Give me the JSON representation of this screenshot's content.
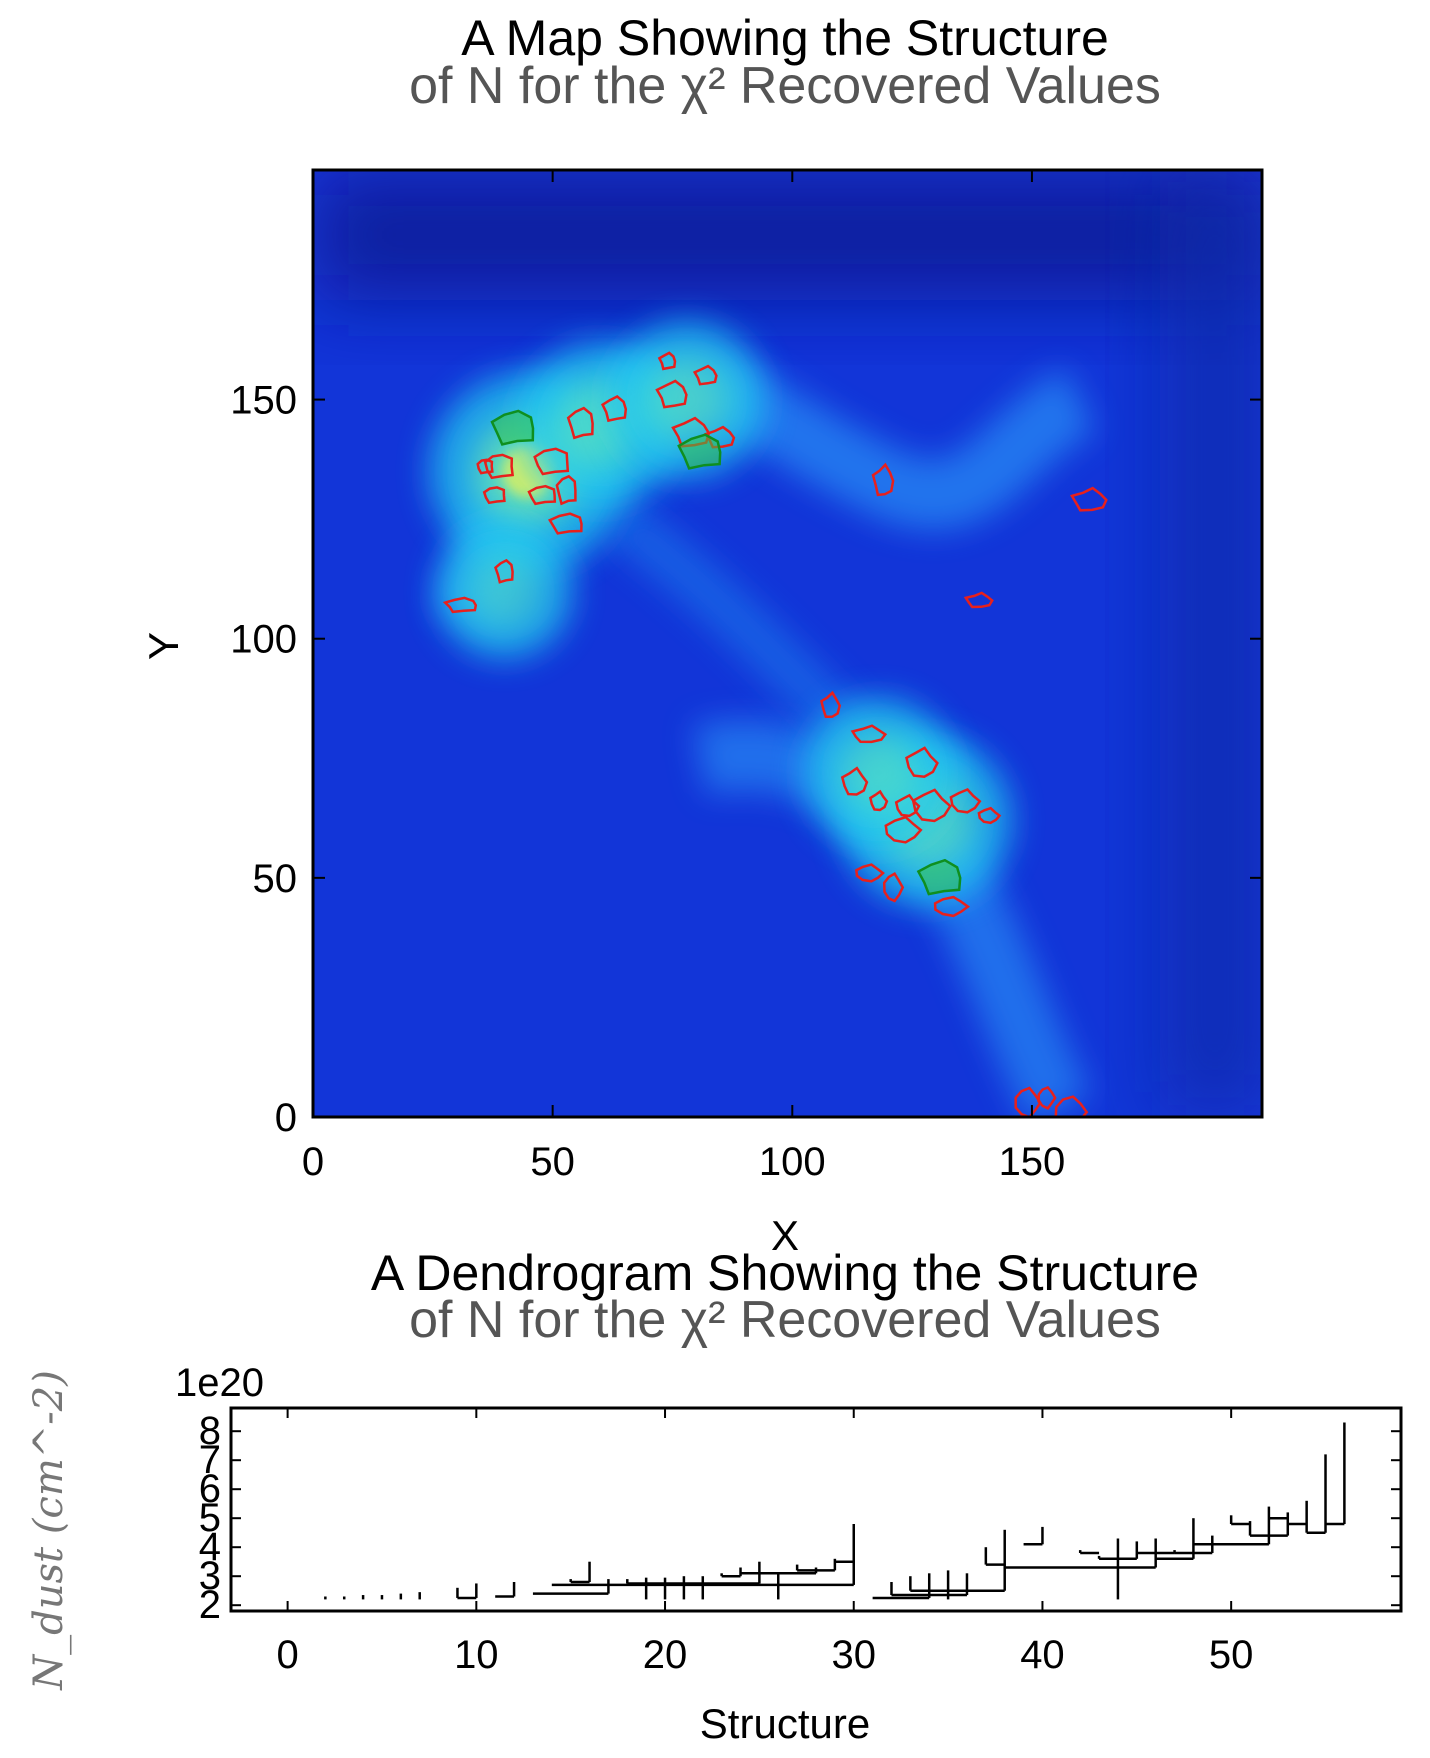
{
  "chart_data": [
    {
      "type": "heatmap",
      "title": "A Map Showing the Structure",
      "subtitle": "of N for the χ² Recovered Values",
      "xlabel": "X",
      "ylabel": "Y",
      "xlim": [
        0,
        198
      ],
      "ylim": [
        0,
        198
      ],
      "xticks": [
        "0",
        "50",
        "100",
        "150"
      ],
      "yticks": [
        "0",
        "50",
        "100",
        "150"
      ],
      "colormap": "jet",
      "contour_colors": {
        "leaf": "#e8201c",
        "branch": "#0f8f1f"
      },
      "bright_regions": [
        {
          "x": 45,
          "y": 135,
          "level": 0.85
        },
        {
          "x": 60,
          "y": 145,
          "level": 0.6
        },
        {
          "x": 78,
          "y": 150,
          "level": 0.55
        },
        {
          "x": 128,
          "y": 62,
          "level": 0.65
        },
        {
          "x": 118,
          "y": 72,
          "level": 0.5
        },
        {
          "x": 40,
          "y": 110,
          "level": 0.4
        }
      ],
      "red_contours": [
        {
          "x": 36,
          "y": 136
        },
        {
          "x": 39,
          "y": 136
        },
        {
          "x": 38,
          "y": 130
        },
        {
          "x": 50,
          "y": 137
        },
        {
          "x": 48,
          "y": 130
        },
        {
          "x": 53,
          "y": 131
        },
        {
          "x": 53,
          "y": 124
        },
        {
          "x": 56,
          "y": 145
        },
        {
          "x": 40,
          "y": 114
        },
        {
          "x": 31,
          "y": 107
        },
        {
          "x": 63,
          "y": 148
        },
        {
          "x": 74,
          "y": 158
        },
        {
          "x": 75,
          "y": 151
        },
        {
          "x": 82,
          "y": 155
        },
        {
          "x": 79,
          "y": 143
        },
        {
          "x": 85,
          "y": 142
        },
        {
          "x": 119,
          "y": 133
        },
        {
          "x": 162,
          "y": 129
        },
        {
          "x": 139,
          "y": 108
        },
        {
          "x": 108,
          "y": 86
        },
        {
          "x": 116,
          "y": 80
        },
        {
          "x": 113,
          "y": 70
        },
        {
          "x": 118,
          "y": 66
        },
        {
          "x": 127,
          "y": 74
        },
        {
          "x": 124,
          "y": 65
        },
        {
          "x": 129,
          "y": 65
        },
        {
          "x": 136,
          "y": 66
        },
        {
          "x": 141,
          "y": 63
        },
        {
          "x": 123,
          "y": 60
        },
        {
          "x": 116,
          "y": 51
        },
        {
          "x": 121,
          "y": 48
        },
        {
          "x": 133,
          "y": 44
        },
        {
          "x": 149,
          "y": 3
        },
        {
          "x": 153,
          "y": 4
        },
        {
          "x": 158,
          "y": 1
        }
      ],
      "green_contours": [
        {
          "x": 42,
          "y": 144
        },
        {
          "x": 81,
          "y": 139
        },
        {
          "x": 131,
          "y": 50
        }
      ]
    },
    {
      "type": "line",
      "subtype": "dendrogram",
      "title": "A Dendrogram Showing the Structure",
      "subtitle": "of N for the χ² Recovered Values",
      "xlabel": "Structure",
      "ylabel": "N_dust (cm^-2)",
      "scale_label": "1e20",
      "xlim": [
        -3,
        59
      ],
      "ylim": [
        1.8,
        8.8
      ],
      "xticks": [
        "0",
        "10",
        "20",
        "30",
        "40",
        "50"
      ],
      "yticks": [
        "2",
        "3",
        "4",
        "5",
        "6",
        "7",
        "8"
      ],
      "leaves": [
        {
          "x": 2,
          "peak": 2.3
        },
        {
          "x": 3,
          "peak": 2.3
        },
        {
          "x": 4,
          "peak": 2.35
        },
        {
          "x": 5,
          "peak": 2.35
        },
        {
          "x": 6,
          "peak": 2.4
        },
        {
          "x": 7,
          "peak": 2.45
        },
        {
          "x": 9,
          "peak": 2.6
        },
        {
          "x": 10,
          "peak": 2.75
        },
        {
          "x": 11,
          "peak": 2.3
        },
        {
          "x": 12,
          "peak": 2.8
        },
        {
          "x": 15,
          "peak": 2.9
        },
        {
          "x": 16,
          "peak": 3.5
        },
        {
          "x": 17,
          "peak": 2.9
        },
        {
          "x": 18,
          "peak": 2.9
        },
        {
          "x": 19,
          "peak": 2.95
        },
        {
          "x": 20,
          "peak": 2.95
        },
        {
          "x": 21,
          "peak": 3.0
        },
        {
          "x": 22,
          "peak": 3.0
        },
        {
          "x": 23,
          "peak": 3.1
        },
        {
          "x": 24,
          "peak": 3.3
        },
        {
          "x": 25,
          "peak": 3.5
        },
        {
          "x": 26,
          "peak": 3.1
        },
        {
          "x": 27,
          "peak": 3.4
        },
        {
          "x": 28,
          "peak": 3.3
        },
        {
          "x": 29,
          "peak": 3.6
        },
        {
          "x": 30,
          "peak": 4.8
        },
        {
          "x": 32,
          "peak": 2.8
        },
        {
          "x": 33,
          "peak": 3.0
        },
        {
          "x": 34,
          "peak": 3.1
        },
        {
          "x": 35,
          "peak": 3.2
        },
        {
          "x": 36,
          "peak": 3.1
        },
        {
          "x": 37,
          "peak": 4.0
        },
        {
          "x": 38,
          "peak": 4.6
        },
        {
          "x": 39,
          "peak": 4.1
        },
        {
          "x": 40,
          "peak": 4.7
        },
        {
          "x": 42,
          "peak": 3.9
        },
        {
          "x": 43,
          "peak": 3.7
        },
        {
          "x": 44,
          "peak": 4.3
        },
        {
          "x": 45,
          "peak": 4.2
        },
        {
          "x": 46,
          "peak": 4.3
        },
        {
          "x": 47,
          "peak": 3.9
        },
        {
          "x": 48,
          "peak": 5.0
        },
        {
          "x": 49,
          "peak": 4.4
        },
        {
          "x": 50,
          "peak": 5.1
        },
        {
          "x": 51,
          "peak": 4.9
        },
        {
          "x": 52,
          "peak": 5.4
        },
        {
          "x": 53,
          "peak": 5.2
        },
        {
          "x": 54,
          "peak": 5.6
        },
        {
          "x": 55,
          "peak": 7.2
        },
        {
          "x": 56,
          "peak": 8.3
        }
      ],
      "merges": [
        {
          "x1": 9,
          "x2": 10,
          "y": 2.25
        },
        {
          "x1": 11,
          "x2": 12,
          "y": 2.3
        },
        {
          "x1": 13,
          "x2": 17,
          "y": 2.4
        },
        {
          "x1": 15,
          "x2": 16,
          "y": 2.8
        },
        {
          "x1": 14,
          "x2": 30,
          "y": 2.7
        },
        {
          "x1": 18,
          "x2": 25,
          "y": 2.75
        },
        {
          "x1": 23,
          "x2": 24,
          "y": 3.0
        },
        {
          "x1": 24,
          "x2": 28,
          "y": 3.1
        },
        {
          "x1": 27,
          "x2": 29,
          "y": 3.2
        },
        {
          "x1": 29,
          "x2": 30,
          "y": 3.5
        },
        {
          "x1": 31,
          "x2": 34,
          "y": 2.25
        },
        {
          "x1": 32,
          "x2": 36,
          "y": 2.35
        },
        {
          "x1": 33,
          "x2": 38,
          "y": 2.5
        },
        {
          "x1": 37,
          "x2": 38,
          "y": 3.4
        },
        {
          "x1": 39,
          "x2": 40,
          "y": 4.1
        },
        {
          "x1": 38,
          "x2": 46,
          "y": 3.3
        },
        {
          "x1": 42,
          "x2": 43,
          "y": 3.8
        },
        {
          "x1": 43,
          "x2": 45,
          "y": 3.6
        },
        {
          "x1": 45,
          "x2": 47,
          "y": 3.8
        },
        {
          "x1": 46,
          "x2": 48,
          "y": 3.6
        },
        {
          "x1": 47,
          "x2": 49,
          "y": 3.8
        },
        {
          "x1": 48,
          "x2": 52,
          "y": 4.1
        },
        {
          "x1": 50,
          "x2": 51,
          "y": 4.8
        },
        {
          "x1": 51,
          "x2": 53,
          "y": 4.4
        },
        {
          "x1": 52,
          "x2": 53,
          "y": 5.0
        },
        {
          "x1": 53,
          "x2": 54,
          "y": 4.8
        },
        {
          "x1": 54,
          "x2": 55,
          "y": 4.5
        },
        {
          "x1": 55,
          "x2": 56,
          "y": 4.8
        }
      ]
    }
  ]
}
